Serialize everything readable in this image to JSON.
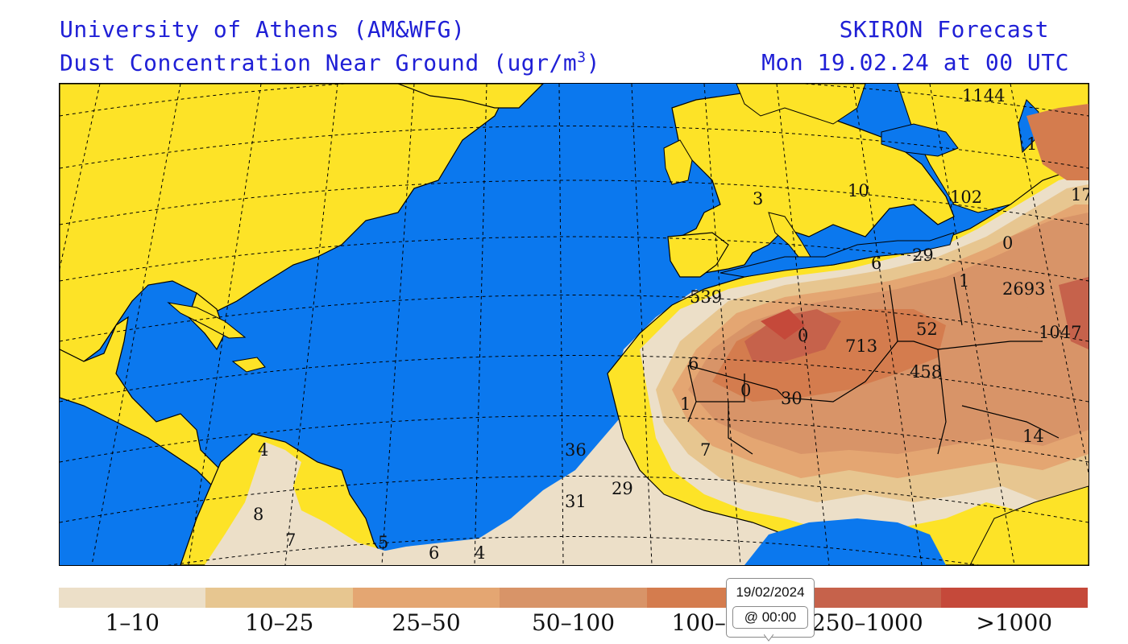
{
  "header": {
    "left_line1": "University of Athens (AM&WFG)",
    "left_line2": "Dust Concentration Near Ground (ugr/m",
    "left_line2_sup": "3",
    "left_line2_end": ")",
    "right_line1": "SKIRON Forecast",
    "right_line2": "Mon 19.02.24 at 00 UTC"
  },
  "map_labels": [
    {
      "id": "l1",
      "text": "1144"
    },
    {
      "id": "l2",
      "text": "1"
    },
    {
      "id": "l3",
      "text": "17"
    },
    {
      "id": "l4",
      "text": "102"
    },
    {
      "id": "l5",
      "text": "10"
    },
    {
      "id": "l6",
      "text": "3"
    },
    {
      "id": "l7",
      "text": "0"
    },
    {
      "id": "l8",
      "text": "29"
    },
    {
      "id": "l9",
      "text": "6"
    },
    {
      "id": "l10",
      "text": "1"
    },
    {
      "id": "l11",
      "text": "2693"
    },
    {
      "id": "l12",
      "text": "539"
    },
    {
      "id": "l13",
      "text": "52"
    },
    {
      "id": "l14",
      "text": "1047"
    },
    {
      "id": "l15",
      "text": "0"
    },
    {
      "id": "l16",
      "text": "713"
    },
    {
      "id": "l17",
      "text": "6"
    },
    {
      "id": "l18",
      "text": "458"
    },
    {
      "id": "l19",
      "text": "0"
    },
    {
      "id": "l20",
      "text": "30"
    },
    {
      "id": "l21",
      "text": "1"
    },
    {
      "id": "l22",
      "text": "14"
    },
    {
      "id": "l23",
      "text": "36"
    },
    {
      "id": "l24",
      "text": "7"
    },
    {
      "id": "l25",
      "text": "4"
    },
    {
      "id": "l26",
      "text": "29"
    },
    {
      "id": "l27",
      "text": "31"
    },
    {
      "id": "l28",
      "text": "8"
    },
    {
      "id": "l29",
      "text": "7"
    },
    {
      "id": "l30",
      "text": "5"
    },
    {
      "id": "l31",
      "text": "6"
    },
    {
      "id": "l32",
      "text": "4"
    }
  ],
  "legend": [
    {
      "label": "1–10",
      "color": "#ecdfc8"
    },
    {
      "label": "10–25",
      "color": "#e7c690"
    },
    {
      "label": "25–50",
      "color": "#e4a672"
    },
    {
      "label": "50–100",
      "color": "#d89468"
    },
    {
      "label": "100–250",
      "color": "#d47c4e"
    },
    {
      "label": "250–1000",
      "color": "#c6624b"
    },
    {
      "label": ">1000",
      "color": "#c5493a"
    }
  ],
  "tooltip": {
    "date": "19/02/2024",
    "time": "@ 00:00"
  },
  "colors": {
    "ocean": "#0b78ee",
    "land": "#fde327",
    "header_text": "#1f1fd6"
  }
}
